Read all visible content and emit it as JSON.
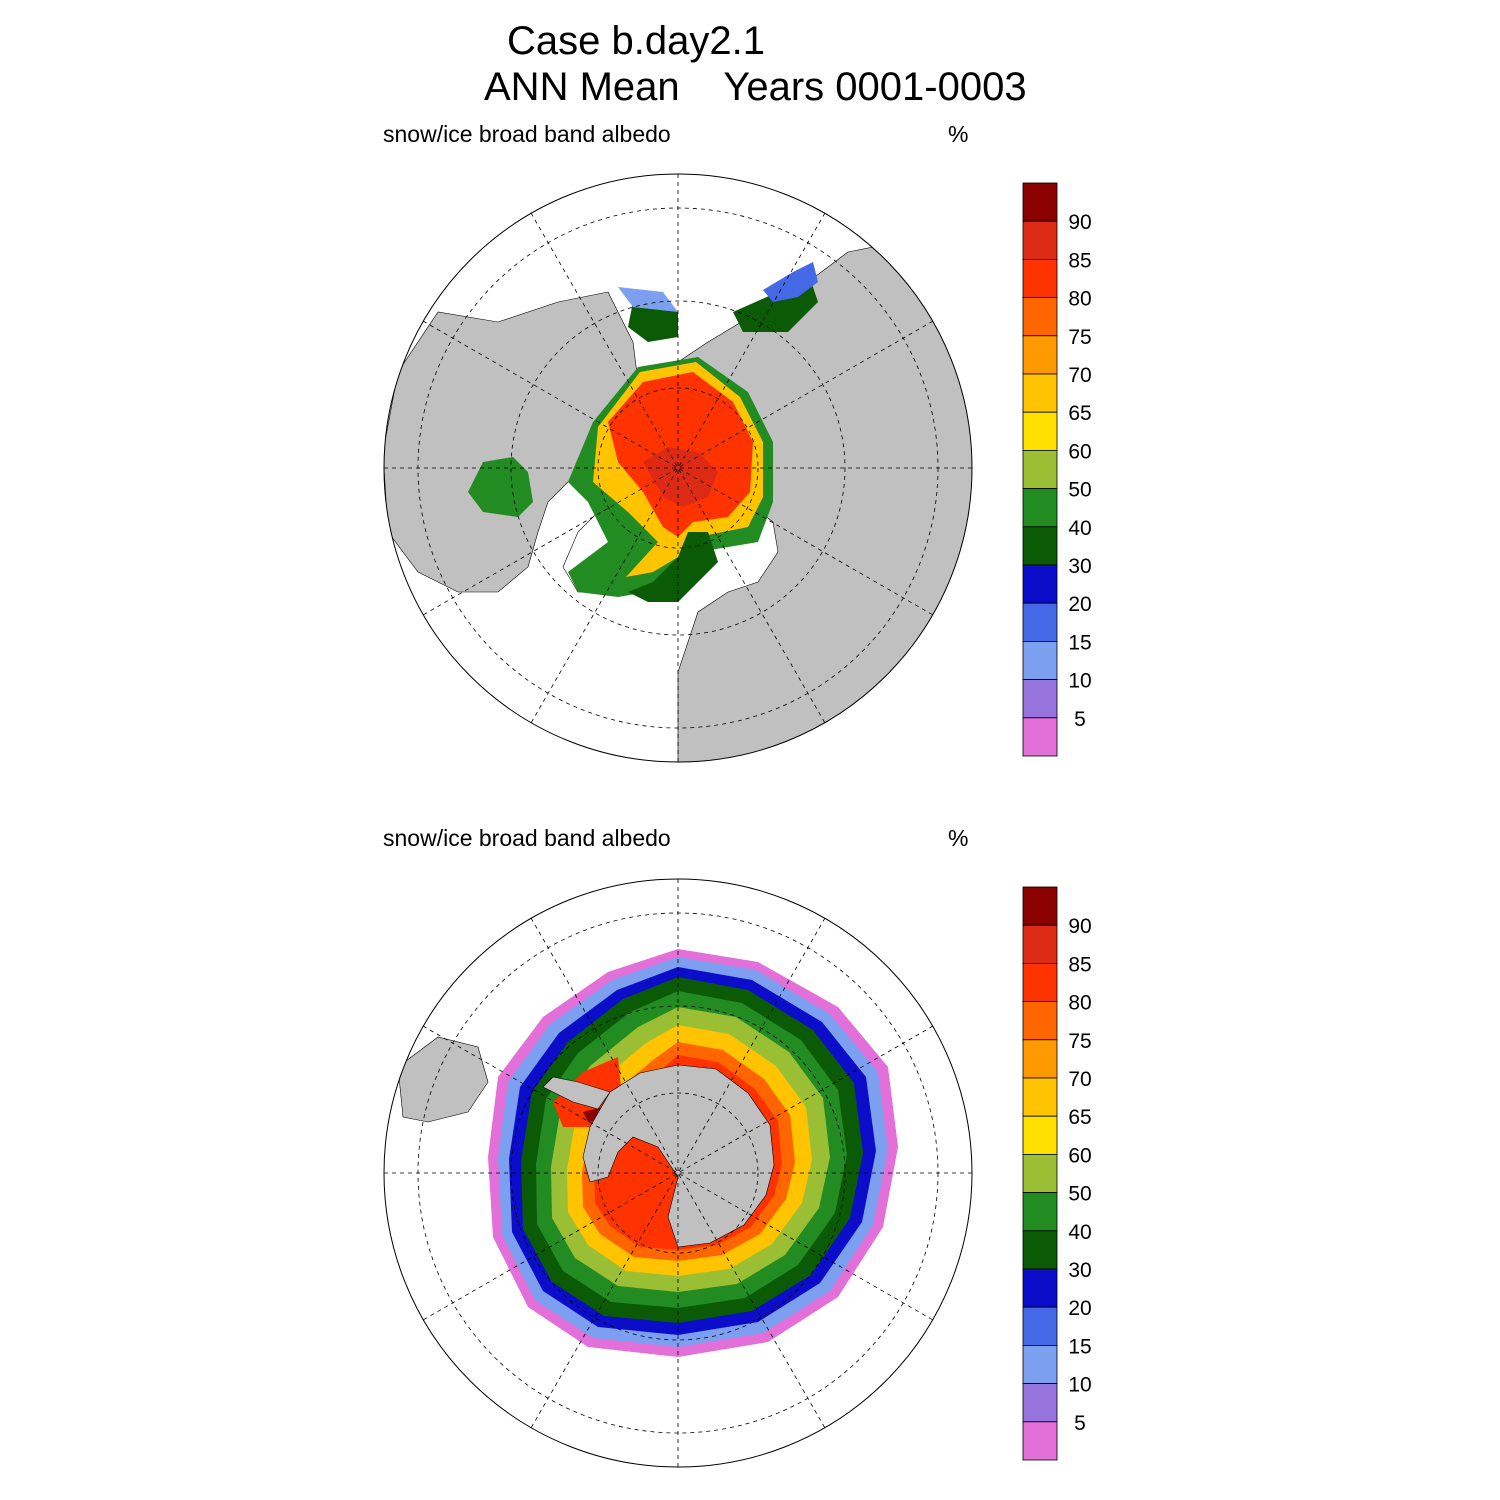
{
  "figure": {
    "case_title": "Case b.day2.1",
    "period_title": "ANN Mean    Years 0001-0003"
  },
  "colorbar": {
    "colors": [
      "#e36fd8",
      "#9673dd",
      "#7c9ff0",
      "#4468e6",
      "#0b0dc8",
      "#0b5a05",
      "#228b22",
      "#9abf35",
      "#ffe000",
      "#ffc300",
      "#ff9900",
      "#ff6600",
      "#ff3300",
      "#dd2a14",
      "#8b0000"
    ],
    "labels": [
      "5",
      "10",
      "15",
      "20",
      "30",
      "40",
      "50",
      "60",
      "65",
      "70",
      "75",
      "80",
      "85",
      "90"
    ]
  },
  "land_color": "#c0c0c0",
  "panels": [
    {
      "id": "north",
      "title": "snow/ice broad band albedo",
      "units": "%",
      "hemisphere": "Northern",
      "projection": "polar stereographic"
    },
    {
      "id": "south",
      "title": "snow/ice broad band albedo",
      "units": "%",
      "hemisphere": "Southern",
      "projection": "polar stereographic"
    }
  ]
}
